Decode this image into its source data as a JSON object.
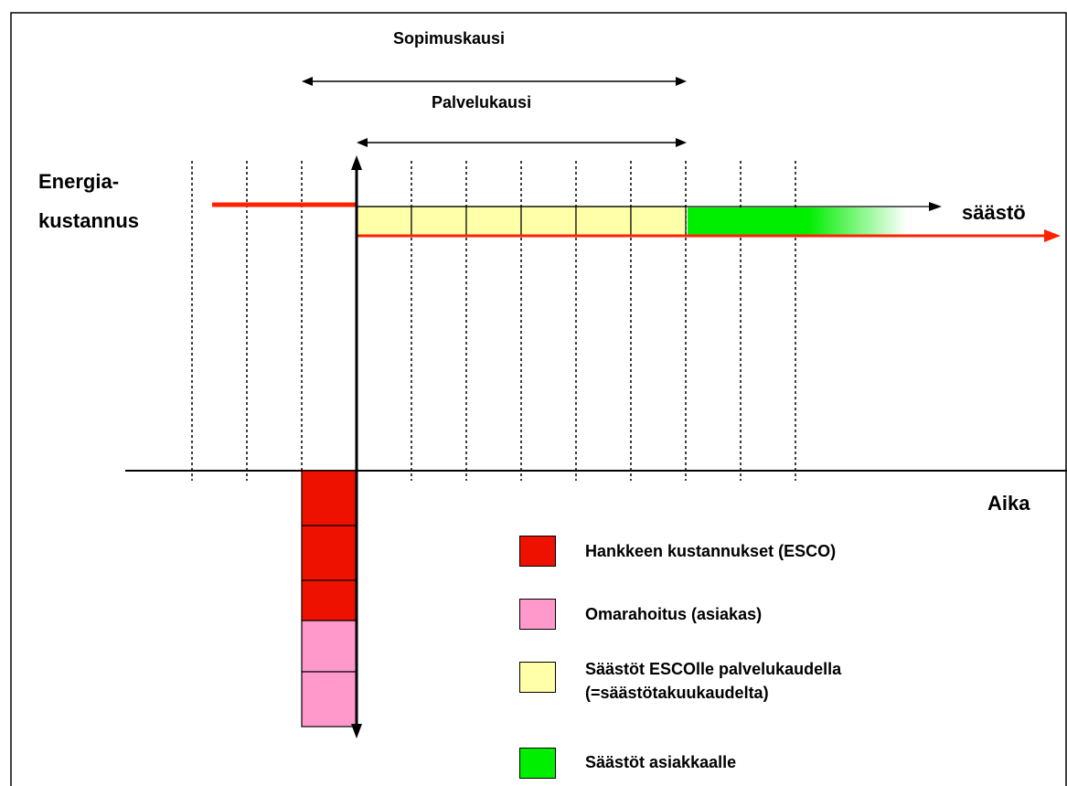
{
  "labels": {
    "sopimuskausi": "Sopimuskausi",
    "palvelukausi": "Palvelukausi",
    "energia_line1": "Energia-",
    "energia_line2": "kustannus",
    "saasto": "säästö",
    "aika": "Aika"
  },
  "legend": [
    {
      "label": "Hankkeen  kustannukset (ESCO)",
      "color": "#ee1100"
    },
    {
      "label": "Omarahoitus (asiakas)",
      "color": "#ff99cc"
    },
    {
      "label": "Säästöt ESCOlle palvelukaudella",
      "label2": "(=säästötakuukaudelta)",
      "color": "#ffffaa"
    },
    {
      "label": "Säästöt asiakkaalle",
      "color": "#00ee00"
    }
  ],
  "colors": {
    "cost_red": "#ee1100",
    "own_pink": "#ff99cc",
    "esco_yellow": "#ffffaa",
    "customer_green": "#00ee00",
    "energy_line_red": "#ff2200"
  }
}
